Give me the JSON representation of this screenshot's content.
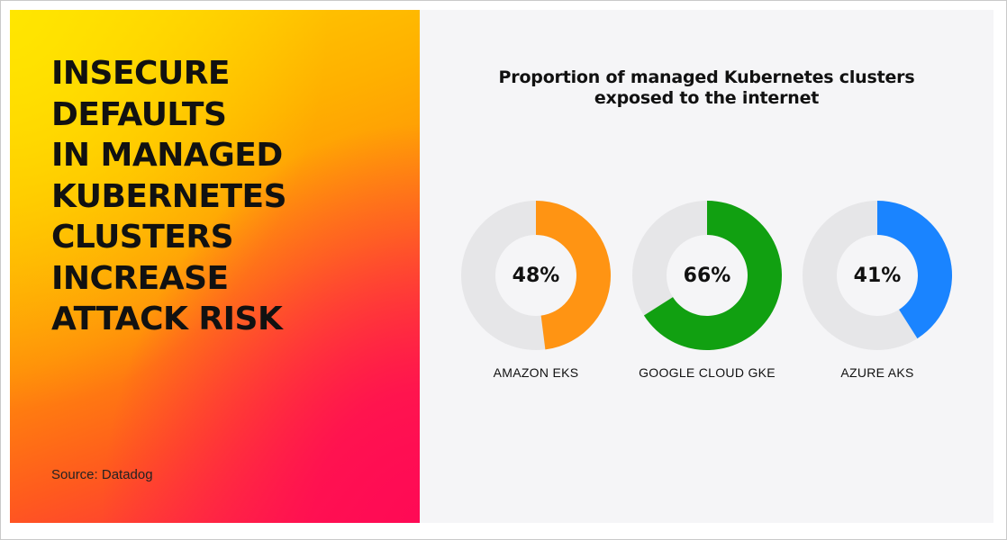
{
  "headline": "INSECURE\nDEFAULTS\nIN MANAGED\nKUBERNETES\nCLUSTERS\nINCREASE\nATTACK RISK",
  "source": "Source: Datadog",
  "colors": {
    "track": "#e6e6e8",
    "series": [
      "#ff9413",
      "#11a011",
      "#1a84ff"
    ]
  },
  "chart_data": {
    "type": "pie",
    "title": "Proportion of managed Kubernetes clusters\nexposed to the internet",
    "categories": [
      "AMAZON EKS",
      "GOOGLE CLOUD GKE",
      "AZURE AKS"
    ],
    "values": [
      48,
      66,
      41
    ],
    "value_labels": [
      "48%",
      "66%",
      "41%"
    ],
    "unit": "%"
  }
}
